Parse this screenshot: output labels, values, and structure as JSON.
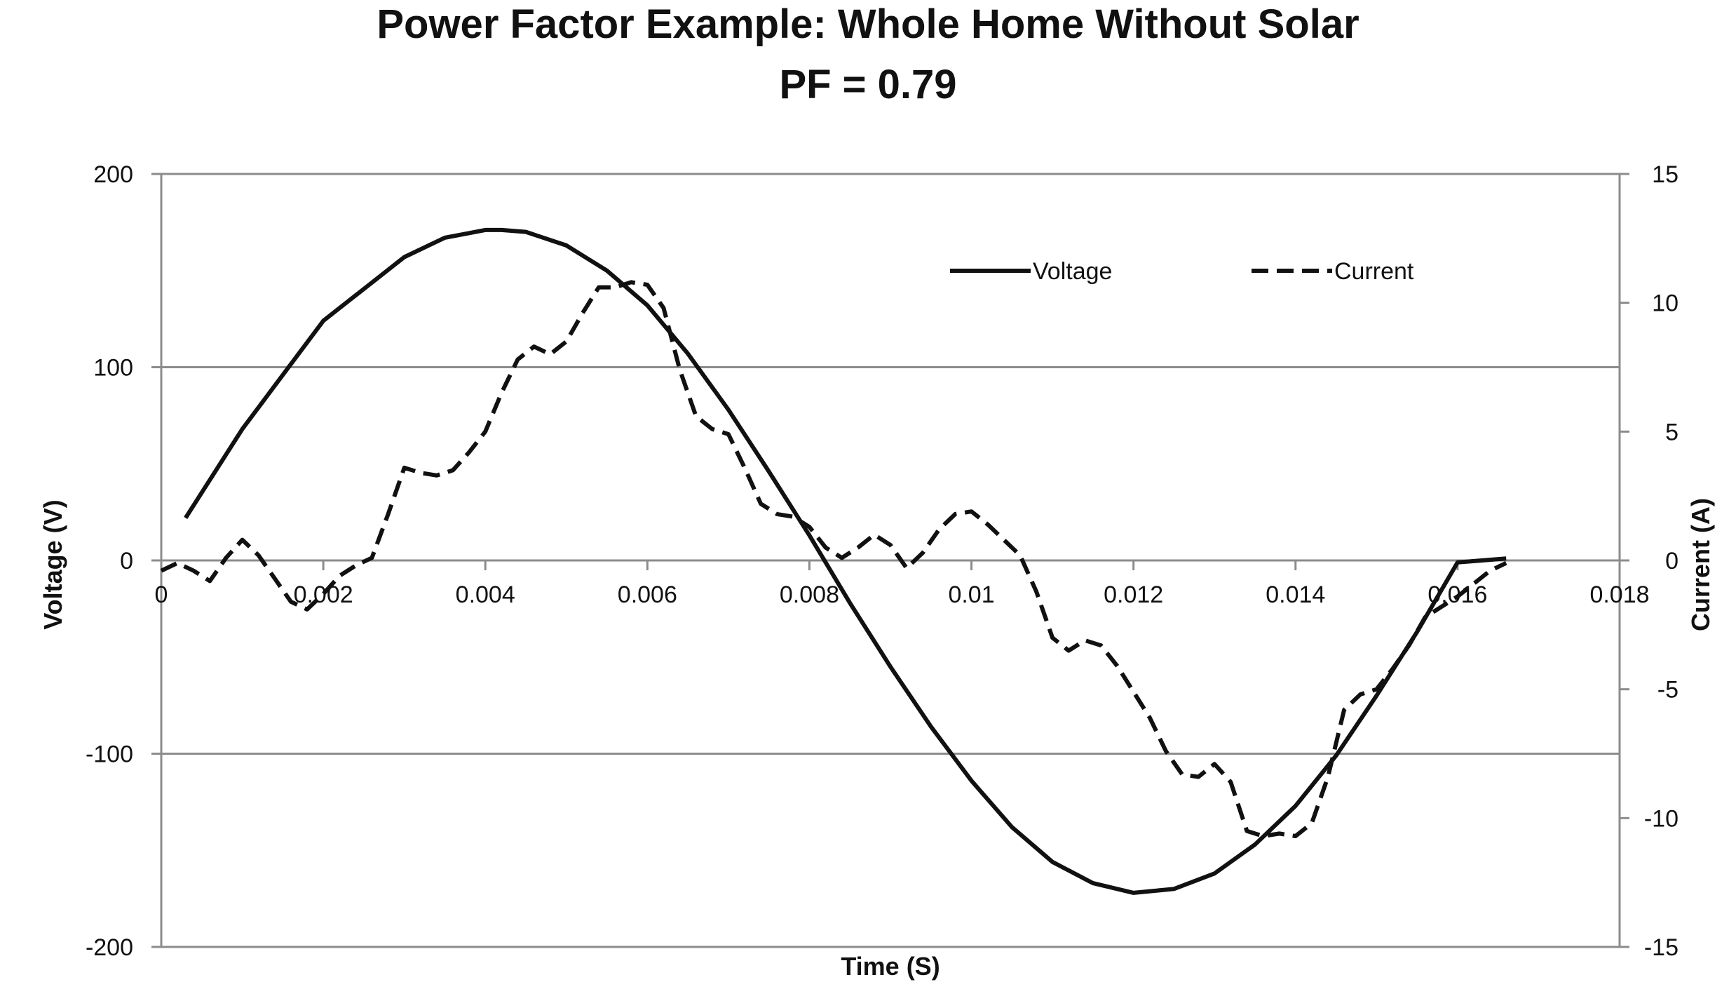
{
  "chart_data": {
    "type": "line",
    "title": "Power Factor Example: Whole Home Without Solar",
    "subtitle": "PF = 0.79",
    "xlabel": "Time (S)",
    "ylabel": "Voltage (V)",
    "y2label": "Current (A)",
    "xlim": [
      0,
      0.018
    ],
    "ylim": [
      -200,
      200
    ],
    "y2lim": [
      -15,
      15
    ],
    "x_ticks": [
      "0",
      "0.002",
      "0.004",
      "0.006",
      "0.008",
      "0.01",
      "0.012",
      "0.014",
      "0.016",
      "0.018"
    ],
    "y_ticks": [
      "200",
      "100",
      "0",
      "-100",
      "-200"
    ],
    "y2_ticks": [
      "15",
      "10",
      "5",
      "0",
      "-5",
      "-10",
      "-15"
    ],
    "grid": true,
    "legend": "top-right",
    "series": [
      {
        "name": "Voltage",
        "axis": "left",
        "style": "solid",
        "x": [
          0.0003,
          0.001,
          0.002,
          0.003,
          0.0035,
          0.004,
          0.0042,
          0.0045,
          0.005,
          0.0055,
          0.006,
          0.0065,
          0.007,
          0.0075,
          0.008,
          0.0085,
          0.009,
          0.0095,
          0.01,
          0.0105,
          0.011,
          0.0115,
          0.012,
          0.0125,
          0.013,
          0.0135,
          0.014,
          0.0145,
          0.015,
          0.0155,
          0.016,
          0.0163,
          0.0166
        ],
        "y": [
          22,
          68,
          124,
          157,
          167,
          171,
          171,
          170,
          163,
          150,
          132,
          107,
          78,
          46,
          13,
          -22,
          -55,
          -86,
          -114,
          -138,
          -156,
          -167,
          -172,
          -170,
          -162,
          -147,
          -127,
          -101,
          -70,
          -37,
          -1,
          0,
          1
        ]
      },
      {
        "name": "Current",
        "axis": "right",
        "style": "dashed",
        "x": [
          0,
          0.0002,
          0.0004,
          0.0006,
          0.0008,
          0.001,
          0.0012,
          0.0014,
          0.0016,
          0.0018,
          0.002,
          0.0022,
          0.0024,
          0.0026,
          0.0028,
          0.003,
          0.0032,
          0.0034,
          0.0036,
          0.0038,
          0.004,
          0.0042,
          0.0044,
          0.0046,
          0.0048,
          0.005,
          0.0052,
          0.0054,
          0.0056,
          0.0058,
          0.006,
          0.0062,
          0.0064,
          0.0066,
          0.0068,
          0.007,
          0.0072,
          0.0074,
          0.0076,
          0.0078,
          0.008,
          0.0082,
          0.0084,
          0.0086,
          0.0088,
          0.009,
          0.0092,
          0.0094,
          0.0096,
          0.0098,
          0.01,
          0.0102,
          0.0104,
          0.0106,
          0.0108,
          0.011,
          0.0112,
          0.0114,
          0.0116,
          0.0118,
          0.012,
          0.0122,
          0.0124,
          0.0126,
          0.0128,
          0.013,
          0.0132,
          0.0134,
          0.0136,
          0.0138,
          0.014,
          0.0142,
          0.0144,
          0.0146,
          0.0148,
          0.015,
          0.0152,
          0.0154,
          0.0156,
          0.0158,
          0.016,
          0.0162,
          0.0164,
          0.0166
        ],
        "y": [
          -0.4,
          -0.1,
          -0.4,
          -0.8,
          0.1,
          0.8,
          0.2,
          -0.7,
          -1.6,
          -1.9,
          -1.3,
          -0.6,
          -0.2,
          0.1,
          1.8,
          3.6,
          3.4,
          3.3,
          3.5,
          4.2,
          5.0,
          6.5,
          7.8,
          8.3,
          8.0,
          8.5,
          9.6,
          10.6,
          10.6,
          10.8,
          10.7,
          9.8,
          7.4,
          5.6,
          5.1,
          4.9,
          3.6,
          2.2,
          1.8,
          1.7,
          1.3,
          0.5,
          0.1,
          0.5,
          1.0,
          0.6,
          -0.3,
          0.3,
          1.2,
          1.8,
          1.9,
          1.4,
          0.8,
          0.2,
          -1.2,
          -3.0,
          -3.5,
          -3.1,
          -3.3,
          -4.1,
          -5.1,
          -6.1,
          -7.4,
          -8.3,
          -8.4,
          -7.9,
          -8.6,
          -10.5,
          -10.7,
          -10.6,
          -10.7,
          -10.2,
          -8.4,
          -5.8,
          -5.2,
          -5.0,
          -4.2,
          -3.3,
          -2.2,
          -1.8,
          -1.4,
          -0.9,
          -0.4,
          -0.1
        ]
      }
    ]
  }
}
